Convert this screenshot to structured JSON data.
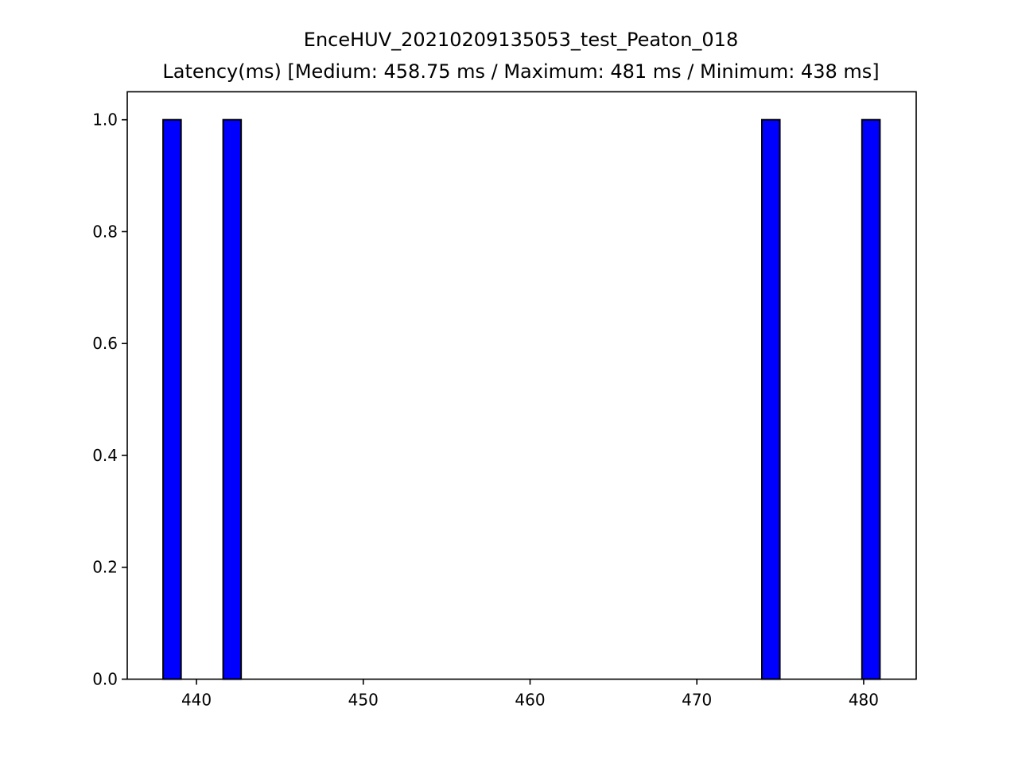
{
  "chart_data": {
    "type": "bar",
    "title": "EnceHUV_20210209135053_test_Peaton_018",
    "subtitle": "Latency(ms) [Medium: 458.75 ms / Maximum: 481 ms / Minimum: 438 ms]",
    "xlabel": "",
    "ylabel": "",
    "xlim": [
      435.85,
      483.15
    ],
    "ylim": [
      0,
      1.05
    ],
    "x_ticks": [
      440,
      450,
      460,
      470,
      480
    ],
    "x_tick_labels": [
      "440",
      "450",
      "460",
      "470",
      "480"
    ],
    "y_ticks": [
      0.0,
      0.2,
      0.4,
      0.6,
      0.8,
      1.0
    ],
    "y_tick_labels": [
      "0.0",
      "0.2",
      "0.4",
      "0.6",
      "0.8",
      "1.0"
    ],
    "grid": false,
    "bin_width": 1.075,
    "bars": [
      {
        "x_start": 438.0,
        "value": 1
      },
      {
        "x_start": 441.6,
        "value": 1
      },
      {
        "x_start": 473.9,
        "value": 1
      },
      {
        "x_start": 479.9,
        "value": 1
      }
    ],
    "colors": {
      "bar_fill": "#0000ff",
      "bar_edge": "#000000"
    }
  }
}
